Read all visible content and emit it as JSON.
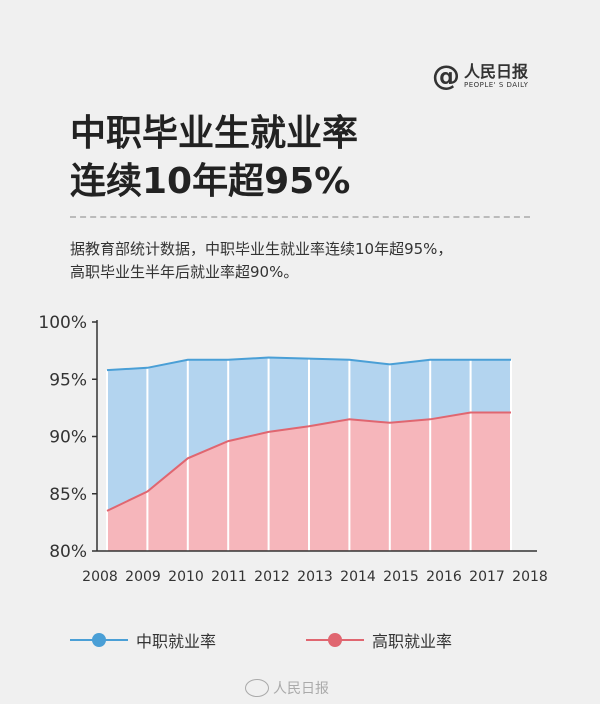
{
  "header": {
    "logo_at": "@",
    "logo_cn": "人民日报",
    "logo_en": "PEOPLE' S DAILY",
    "title_line1": "中职毕业生就业率",
    "title_line2": "连续10年超95%"
  },
  "description": {
    "line1": "据教育部统计数据，中职毕业生就业率连续10年超95%，",
    "line2": "高职毕业生半年后就业率超90%。"
  },
  "colors": {
    "vocational_line": "#4a9fd6",
    "vocational_fill": "#b3d4ef",
    "higher_line": "#e06670",
    "higher_fill": "#f6b6bb"
  },
  "legend": {
    "item1": "中职就业率",
    "item2": "高职就业率"
  },
  "watermark": {
    "text": "人民日报"
  },
  "chart_data": {
    "type": "area",
    "x_ticks": [
      "2008",
      "2009",
      "2010",
      "2011",
      "2012",
      "2013",
      "2014",
      "2015",
      "2016",
      "2017",
      "2018"
    ],
    "y_ticks": [
      "100%",
      "95%",
      "90%",
      "85%",
      "80%"
    ],
    "ylim": [
      80,
      100
    ],
    "grid": false,
    "legend_position": "bottom",
    "series": [
      {
        "name": "中职就业率",
        "x": [
          2008,
          2009,
          2010,
          2011,
          2012,
          2013,
          2014,
          2015,
          2016,
          2017,
          2018
        ],
        "values": [
          95.8,
          96.0,
          96.7,
          96.7,
          96.9,
          96.8,
          96.7,
          96.3,
          96.7,
          96.7,
          96.7
        ]
      },
      {
        "name": "高职就业率",
        "x": [
          2008,
          2009,
          2010,
          2011,
          2012,
          2013,
          2014,
          2015,
          2016,
          2017,
          2018
        ],
        "values": [
          83.5,
          85.2,
          88.1,
          89.6,
          90.4,
          90.9,
          91.5,
          91.2,
          91.5,
          92.1,
          92.1
        ]
      }
    ]
  }
}
